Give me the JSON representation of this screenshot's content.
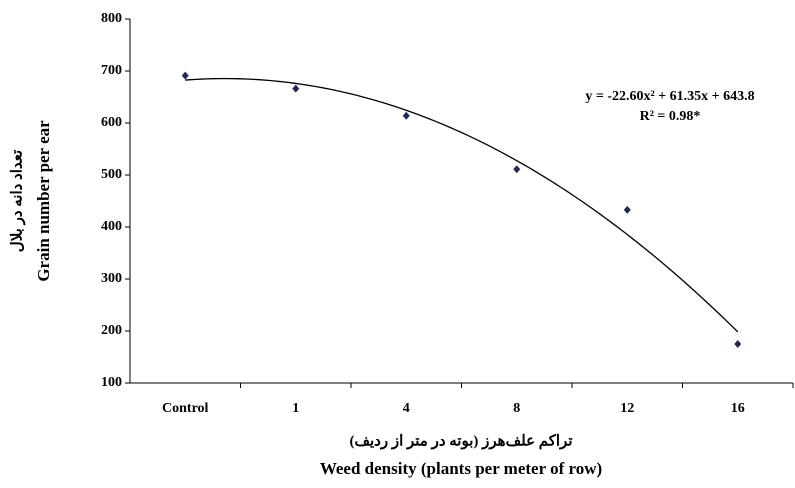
{
  "chart_data": {
    "type": "scatter",
    "y_label": "Grain number per ear",
    "y_label_fa": "تعداد دانه در بلال",
    "x_label": "Weed density (plants per meter of row)",
    "x_label_fa": "تراکم علف‌هرز (بوته در متر از ردیف)",
    "categories": [
      "Control",
      "1",
      "4",
      "8",
      "12",
      "16"
    ],
    "values": [
      691,
      666,
      614,
      511,
      433,
      175
    ],
    "color": "#1f2a5c",
    "ylim": [
      100,
      800
    ],
    "yticks": [
      100,
      200,
      300,
      400,
      500,
      600,
      700,
      800
    ],
    "grid": false,
    "trendline": {
      "a": -22.6,
      "b": 61.35,
      "c": 643.8,
      "label": "y = -22.60x² + 61.35x + 643.8",
      "r2_label": "R² = 0.98*"
    }
  }
}
